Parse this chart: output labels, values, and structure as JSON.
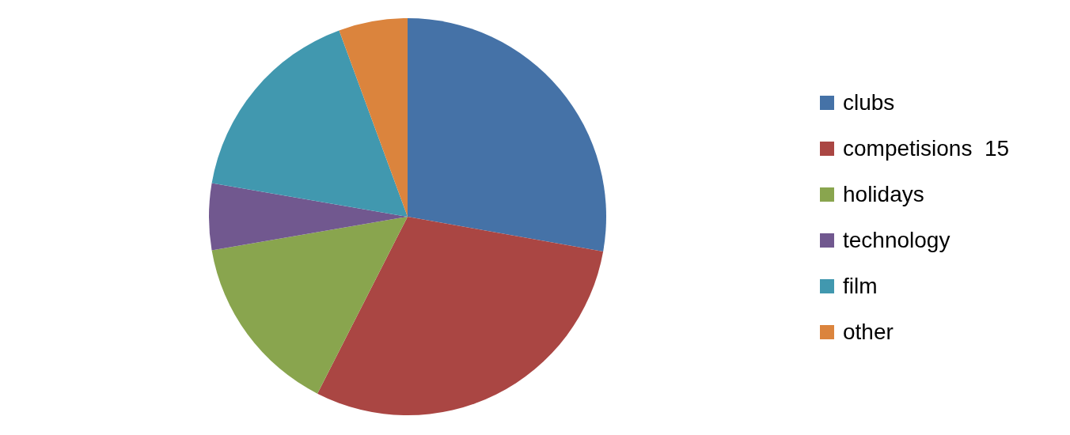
{
  "chart_data": {
    "type": "pie",
    "categories": [
      "clubs",
      "competisions  15",
      "holidays",
      "technology",
      "film",
      "other"
    ],
    "values": [
      27.8,
      29.7,
      14.8,
      5.4,
      16.7,
      5.6
    ],
    "colors": [
      "#4572a7",
      "#aa4643",
      "#89a54e",
      "#71588f",
      "#4198af",
      "#db843d"
    ],
    "legend": "right"
  }
}
